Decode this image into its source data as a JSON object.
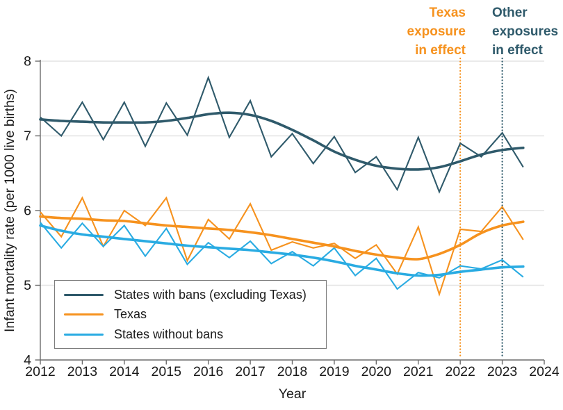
{
  "figure_title": "",
  "colors": {
    "bans": "#2F5A6B",
    "texas": "#F6921E",
    "no_bans": "#29ABE2",
    "gridline": "#E3E3E3",
    "axis": "#6b6b6b",
    "tick_label": "#1a1a1a"
  },
  "legend": {
    "items": [
      {
        "label": "States with bans (excluding Texas)",
        "color": "#2F5A6B"
      },
      {
        "label": "Texas",
        "color": "#F6921E"
      },
      {
        "label": "States without bans",
        "color": "#29ABE2"
      }
    ]
  },
  "chart_data": {
    "type": "line",
    "title": "",
    "xlabel": "Year",
    "ylabel": "Infant mortality rate (per 1000 live births)",
    "xlim": [
      2012,
      2024
    ],
    "ylim": [
      4,
      8
    ],
    "x_ticks": [
      2012,
      2013,
      2014,
      2015,
      2016,
      2017,
      2018,
      2019,
      2020,
      2021,
      2022,
      2023,
      2024
    ],
    "y_ticks": [
      4,
      5,
      6,
      7,
      8
    ],
    "grid": "horizontal",
    "legend_position": "lower left box",
    "x": [
      2012,
      2012.5,
      2013,
      2013.5,
      2014,
      2014.5,
      2015,
      2015.5,
      2016,
      2016.5,
      2017,
      2017.5,
      2018,
      2018.5,
      2019,
      2019.5,
      2020,
      2020.5,
      2021,
      2021.5,
      2022,
      2022.5,
      2023,
      2023.5
    ],
    "series": [
      {
        "id": "bans-raw",
        "name": "States with bans (excluding Texas)",
        "role": "observed",
        "color": "#2F5A6B",
        "width": 2.1,
        "values": [
          7.25,
          7.0,
          7.45,
          6.95,
          7.45,
          6.86,
          7.44,
          7.01,
          7.78,
          6.98,
          7.47,
          6.72,
          7.03,
          6.63,
          6.99,
          6.51,
          6.72,
          6.28,
          6.98,
          6.25,
          6.9,
          6.72,
          7.04,
          6.58
        ]
      },
      {
        "id": "bans-smooth",
        "name": "States with bans (excluding Texas) trend",
        "role": "trend",
        "color": "#2F5A6B",
        "width": 3.6,
        "values": [
          7.22,
          7.2,
          7.19,
          7.18,
          7.18,
          7.18,
          7.2,
          7.24,
          7.29,
          7.31,
          7.28,
          7.2,
          7.08,
          6.94,
          6.79,
          6.68,
          6.6,
          6.56,
          6.55,
          6.58,
          6.66,
          6.75,
          6.81,
          6.84
        ]
      },
      {
        "id": "texas-raw",
        "name": "Texas",
        "role": "observed",
        "color": "#F6921E",
        "width": 2.1,
        "values": [
          5.98,
          5.65,
          6.17,
          5.52,
          6.0,
          5.8,
          6.17,
          5.33,
          5.88,
          5.62,
          6.09,
          5.47,
          5.58,
          5.5,
          5.56,
          5.36,
          5.54,
          5.15,
          5.78,
          4.88,
          5.75,
          5.72,
          6.05,
          5.61
        ]
      },
      {
        "id": "texas-smooth",
        "name": "Texas trend",
        "role": "trend",
        "color": "#F6921E",
        "width": 3.6,
        "values": [
          5.92,
          5.9,
          5.89,
          5.87,
          5.86,
          5.83,
          5.8,
          5.78,
          5.76,
          5.74,
          5.71,
          5.67,
          5.62,
          5.57,
          5.52,
          5.46,
          5.41,
          5.37,
          5.35,
          5.42,
          5.54,
          5.7,
          5.8,
          5.85
        ]
      },
      {
        "id": "nobans-raw",
        "name": "States without bans",
        "role": "observed",
        "color": "#29ABE2",
        "width": 2.1,
        "values": [
          5.84,
          5.5,
          5.83,
          5.52,
          5.8,
          5.39,
          5.76,
          5.28,
          5.57,
          5.37,
          5.59,
          5.29,
          5.45,
          5.26,
          5.5,
          5.13,
          5.36,
          4.95,
          5.17,
          5.1,
          5.26,
          5.22,
          5.34,
          5.11
        ]
      },
      {
        "id": "nobans-smooth",
        "name": "States without bans trend",
        "role": "trend",
        "color": "#29ABE2",
        "width": 3.6,
        "values": [
          5.8,
          5.73,
          5.68,
          5.65,
          5.62,
          5.59,
          5.56,
          5.53,
          5.51,
          5.49,
          5.47,
          5.44,
          5.41,
          5.37,
          5.32,
          5.26,
          5.21,
          5.16,
          5.13,
          5.14,
          5.18,
          5.21,
          5.24,
          5.25
        ]
      }
    ],
    "reference_lines": [
      {
        "id": "texas-exposure",
        "x": 2022,
        "color": "#F6921E",
        "label_lines": [
          "Texas",
          "exposure",
          "in effect"
        ]
      },
      {
        "id": "other-exposures",
        "x": 2023,
        "color": "#2F5A6B",
        "label_lines": [
          "Other",
          "exposures",
          "in effect"
        ]
      }
    ]
  }
}
